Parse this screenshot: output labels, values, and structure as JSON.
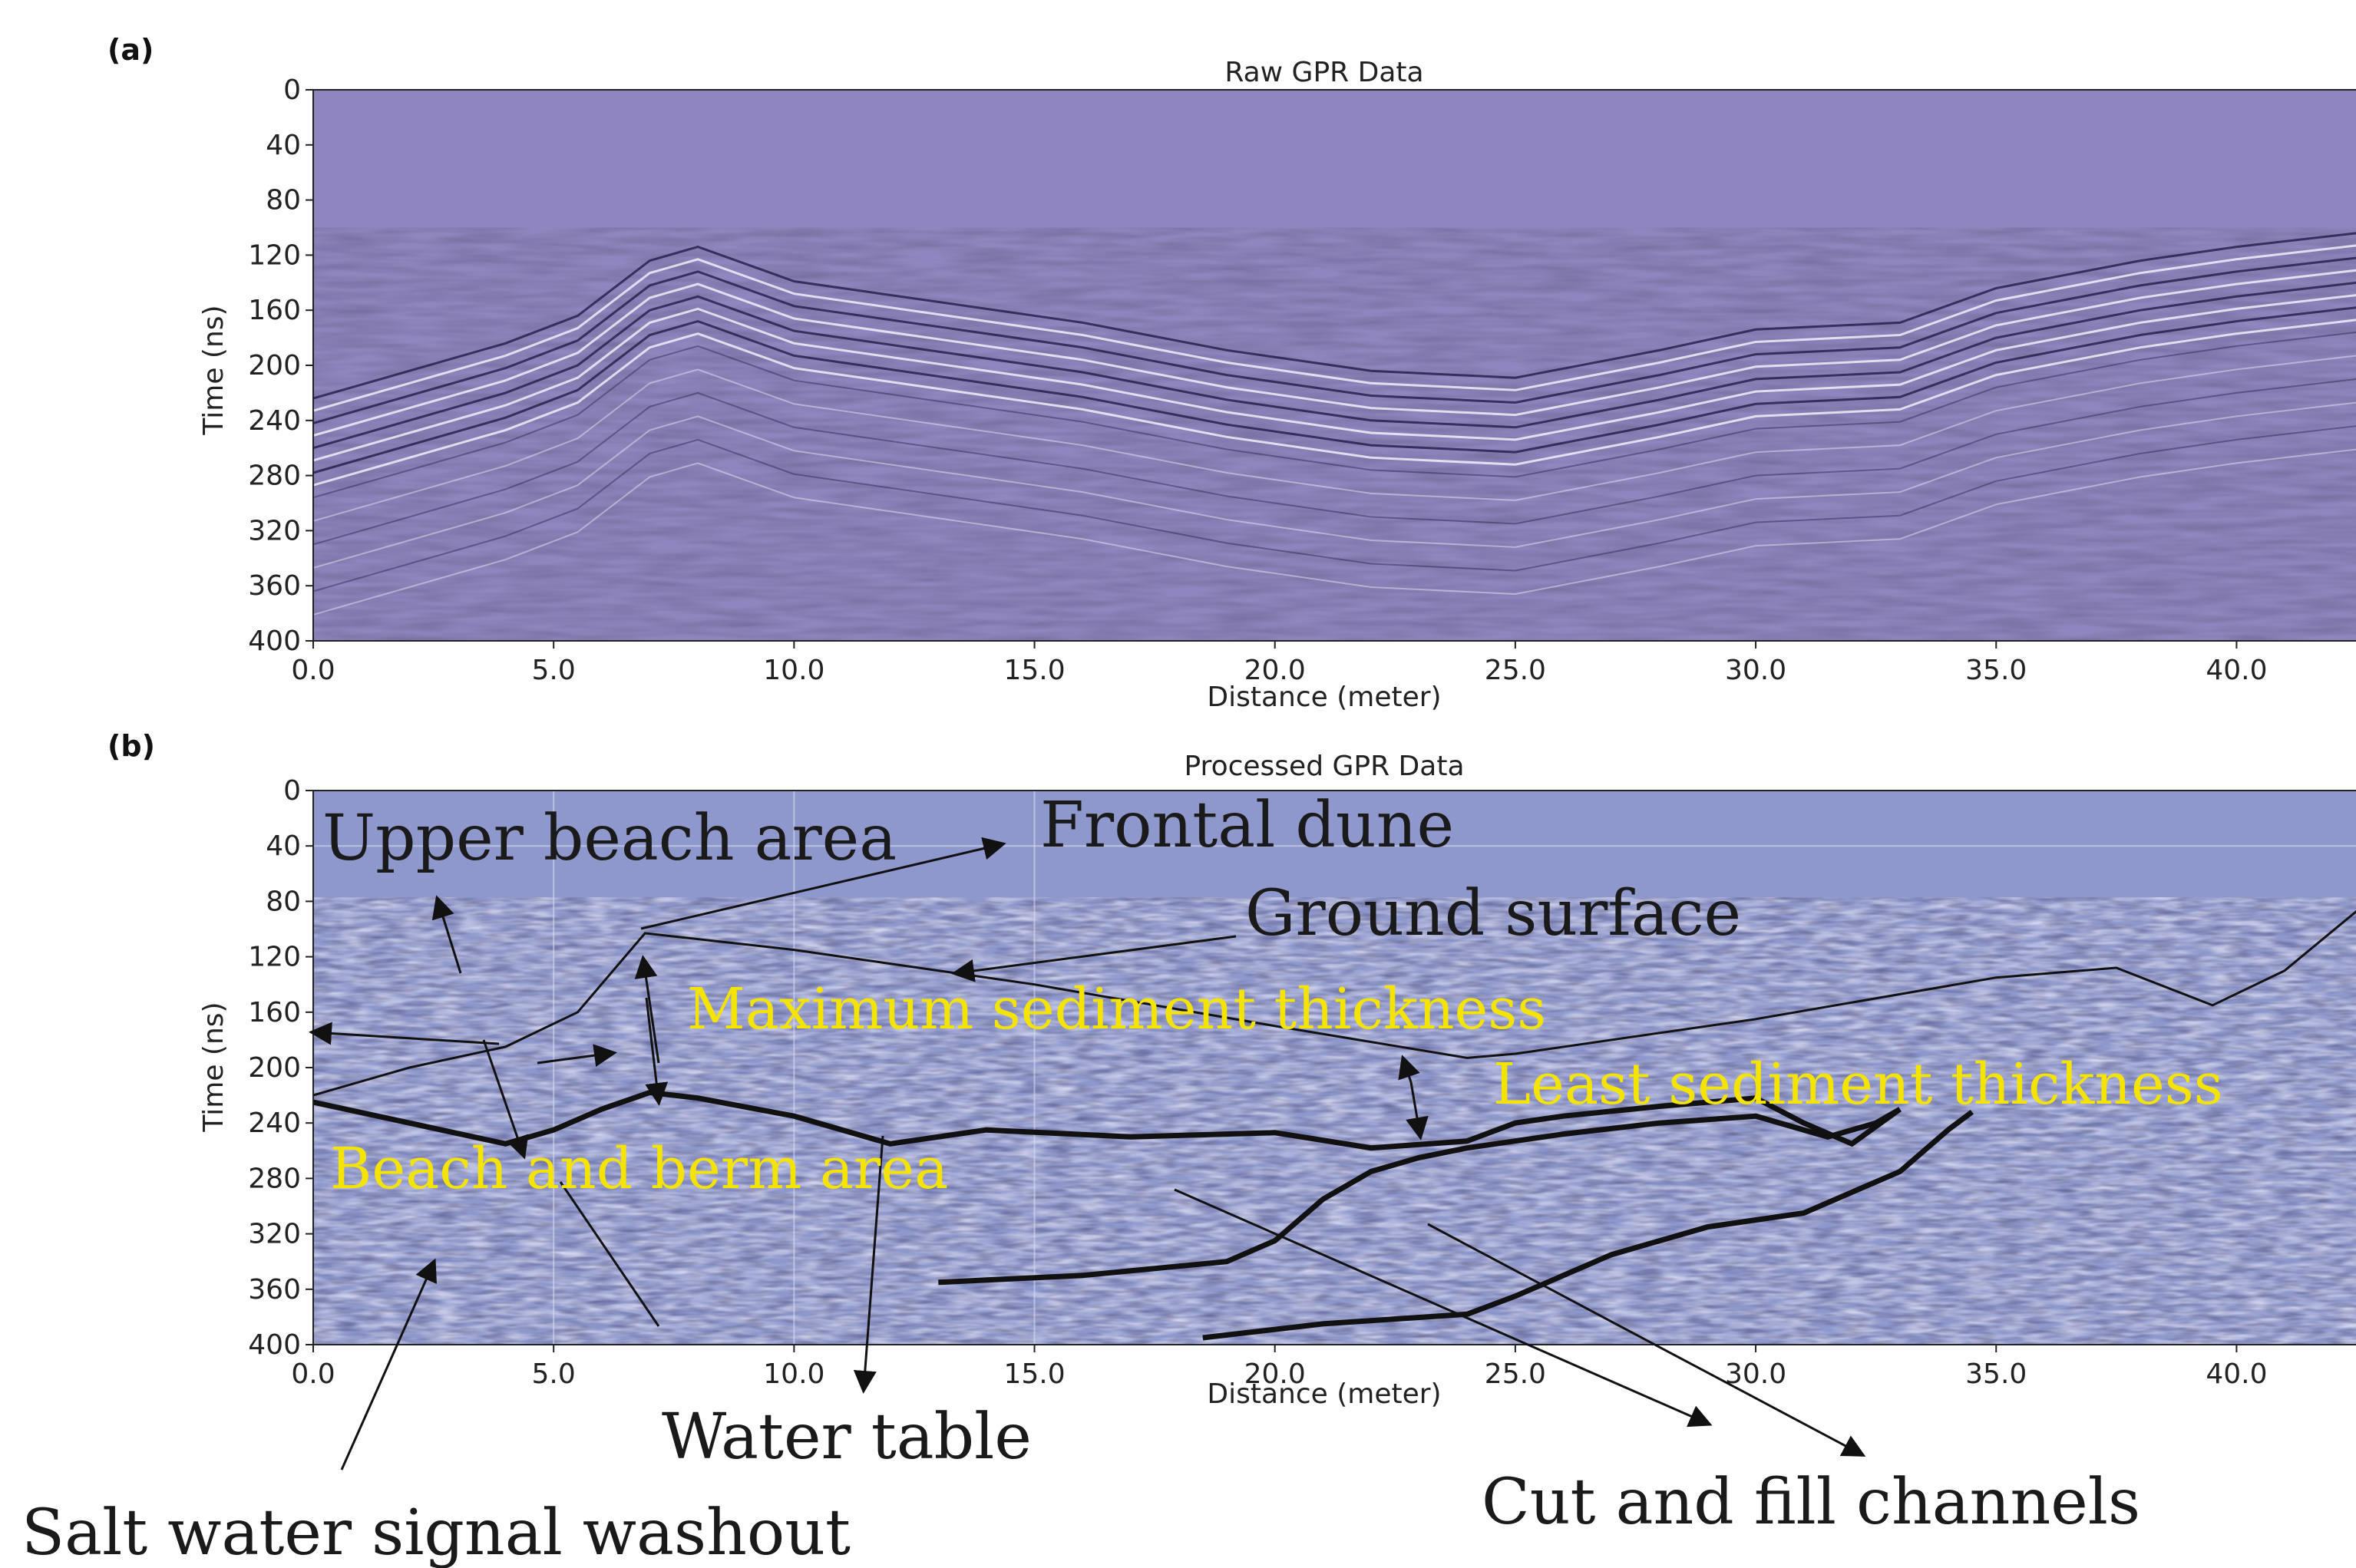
{
  "colors": {
    "raw_background": "#8f86bf",
    "processed_background": "#8f98cc",
    "annotation_text": "#1a1a1a",
    "highlight_text": "#f4e400"
  },
  "chart_data": [
    {
      "type": "heatmap",
      "panel_label": "(a)",
      "title": "Raw GPR Data",
      "xlabel": "Distance (meter)",
      "ylabel": "Time (ns)",
      "xlim": [
        0,
        42.5
      ],
      "ylim": [
        400,
        0
      ],
      "xticks": [
        "0.0",
        "5.0",
        "10.0",
        "15.0",
        "20.0",
        "25.0",
        "30.0",
        "35.0",
        "40.0"
      ],
      "yticks": [
        "0",
        "40",
        "80",
        "120",
        "160",
        "200",
        "240",
        "280",
        "320",
        "360",
        "400"
      ],
      "first_reflection_ns": {
        "x": [
          0,
          2,
          4,
          5.5,
          7,
          8,
          10,
          13,
          16,
          19,
          22,
          25,
          28,
          30,
          33,
          35,
          38,
          40,
          42.5
        ],
        "t": [
          220,
          200,
          180,
          160,
          120,
          110,
          135,
          150,
          165,
          185,
          200,
          205,
          185,
          170,
          165,
          140,
          120,
          110,
          100
        ]
      }
    },
    {
      "type": "heatmap",
      "panel_label": "(b)",
      "title": "Processed GPR Data",
      "xlabel": "Distance (meter)",
      "ylabel": "Time (ns)",
      "xlim": [
        0,
        42.5
      ],
      "ylim": [
        400,
        0
      ],
      "xticks": [
        "0.0",
        "5.0",
        "10.0",
        "15.0",
        "20.0",
        "25.0",
        "30.0",
        "35.0",
        "40.0"
      ],
      "yticks": [
        "0",
        "40",
        "80",
        "120",
        "160",
        "200",
        "240",
        "280",
        "320",
        "360",
        "400"
      ],
      "ground_surface_ns": {
        "x": [
          0,
          2,
          4,
          5.5,
          6.9,
          10,
          15,
          20,
          24,
          25,
          30,
          35,
          37.5,
          39.5,
          41,
          42.5
        ],
        "t": [
          220,
          200,
          185,
          160,
          103,
          115,
          140,
          170,
          193,
          190,
          165,
          135,
          128,
          155,
          130,
          87
        ]
      },
      "water_table_ns": {
        "x": [
          0,
          2,
          4,
          5,
          6,
          7,
          8,
          10,
          12,
          14,
          17,
          20,
          22,
          24,
          25,
          26,
          28,
          30,
          31,
          32,
          33
        ],
        "t": [
          225,
          240,
          255,
          245,
          230,
          218,
          222,
          235,
          255,
          245,
          250,
          247,
          258,
          253,
          240,
          235,
          228,
          222,
          240,
          255,
          230
        ]
      },
      "cut_and_fill_channels_ns": [
        {
          "x": [
            13,
            16,
            19,
            20,
            21,
            22,
            23,
            24,
            26,
            28,
            30,
            31.5,
            32.5,
            33
          ],
          "t": [
            355,
            350,
            340,
            325,
            295,
            275,
            265,
            258,
            248,
            240,
            235,
            250,
            240,
            230
          ]
        },
        {
          "x": [
            18.5,
            21,
            24,
            25,
            27,
            29,
            31,
            32,
            33,
            34,
            34.5
          ],
          "t": [
            395,
            385,
            378,
            365,
            335,
            315,
            305,
            290,
            275,
            245,
            232
          ]
        }
      ],
      "annotations": {
        "upper_beach": "Upper beach area",
        "frontal_dune": "Frontal dune",
        "ground_surface": "Ground surface",
        "max_sediment": "Maximum sediment thickness",
        "least_sediment": "Least sediment thickness",
        "beach_berm": "Beach and berm area",
        "water_table": "Water table",
        "salt_water": "Salt water signal washout",
        "cut_fill": "Cut and fill channels"
      }
    }
  ]
}
